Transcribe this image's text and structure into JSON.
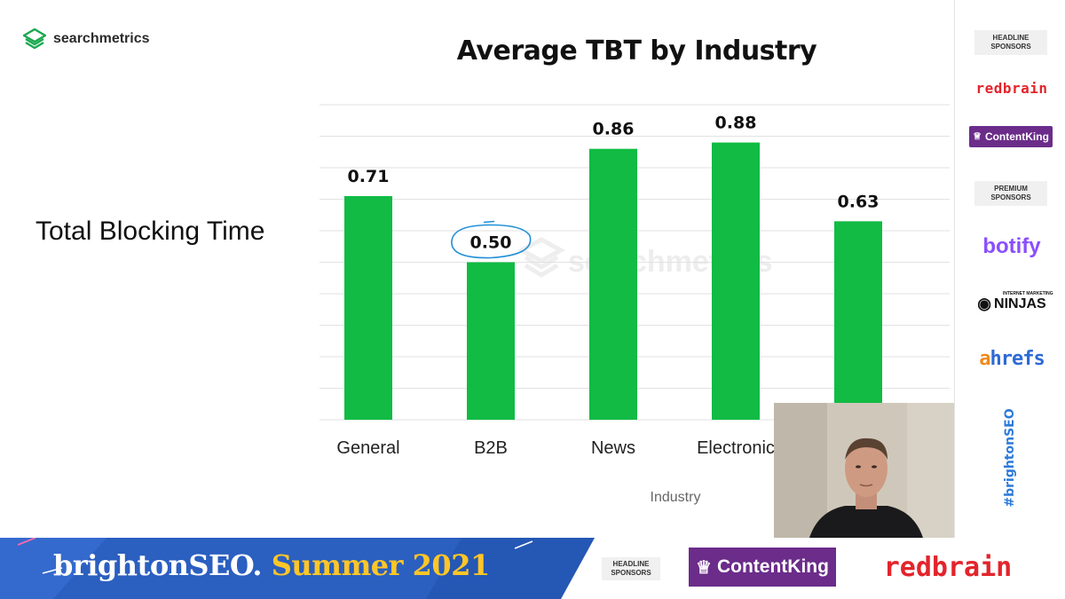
{
  "slide": {
    "logo_text": "searchmetrics",
    "side_heading": "Total Blocking Time",
    "watermark_text": "searchmetrics"
  },
  "chart_data": {
    "type": "bar",
    "title": "Average TBT by Industry",
    "xlabel": "Industry",
    "ylabel": "",
    "categories": [
      "General",
      "B2B",
      "News",
      "Electronic",
      ""
    ],
    "values": [
      0.71,
      0.5,
      0.86,
      0.88,
      0.63
    ],
    "value_labels": [
      "0.71",
      "0.50",
      "0.86",
      "0.88",
      "0.63"
    ],
    "ylim": [
      0,
      1.0
    ],
    "grid": true,
    "bar_color": "#11bb44",
    "annotation": {
      "target_category": "B2B",
      "shape": "hand-drawn circle",
      "color": "#1f8fd6"
    }
  },
  "sidebar": {
    "headline_label_1": "HEADLINE",
    "headline_label_2": "SPONSORS",
    "premium_label_1": "PREMIUM",
    "premium_label_2": "SPONSORS",
    "sponsors": {
      "redbrain": "redbrain",
      "contentking": "ContentKing",
      "botify": "botify",
      "ninjas_small": "INTERNET MARKETING",
      "ninjas": "NINJAS",
      "ahrefs_a": "a",
      "ahrefs_rest": "hrefs"
    },
    "hashtag": "#brightonSEO"
  },
  "footer": {
    "brand_main": "brightonSEO.",
    "brand_summer": "Summer",
    "brand_year": "2021",
    "headline_label_1": "HEADLINE",
    "headline_label_2": "SPONSORS",
    "contentking": "ContentKing",
    "redbrain": "redbrain",
    "banner_color": "#2b5fc0"
  }
}
